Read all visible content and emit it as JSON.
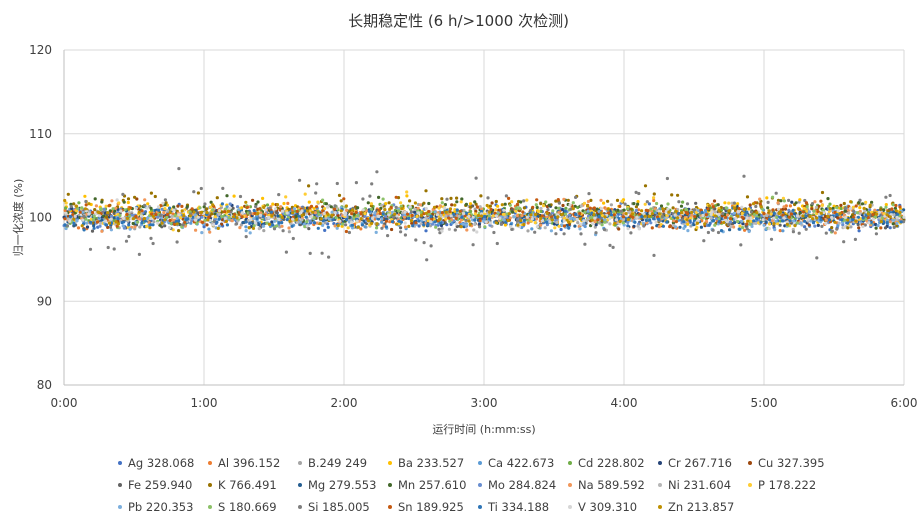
{
  "chart_data": {
    "type": "scatter",
    "title": "长期稳定性 (6 h/>1000 次检测)",
    "xlabel": "运行时间 (h:mm:ss)",
    "ylabel": "归一化浓度 (%)",
    "xlim": [
      0,
      6
    ],
    "ylim": [
      80,
      120
    ],
    "x_ticks": [
      "0:00",
      "1:00",
      "2:00",
      "3:00",
      "4:00",
      "5:00",
      "6:00"
    ],
    "y_ticks": [
      "80",
      "90",
      "100",
      "110",
      "120"
    ],
    "grid": "vertical and horizontal gridlines",
    "legend_position": "bottom",
    "points_per_series": 170,
    "series": [
      {
        "name": "Ag 328.068",
        "color": "#4472C4",
        "mean": 100.0,
        "spread": 0.7
      },
      {
        "name": "Al 396.152",
        "color": "#ED7D31",
        "mean": 100.2,
        "spread": 0.7
      },
      {
        "name": "B.249 249",
        "color": "#A5A5A5",
        "mean": 100.0,
        "spread": 0.8
      },
      {
        "name": "Ba 233.527",
        "color": "#FFC000",
        "mean": 100.6,
        "spread": 0.8
      },
      {
        "name": "Ca 422.673",
        "color": "#5B9BD5",
        "mean": 99.8,
        "spread": 0.6
      },
      {
        "name": "Cd 228.802",
        "color": "#70AD47",
        "mean": 100.5,
        "spread": 0.7
      },
      {
        "name": "Cr 267.716",
        "color": "#264478",
        "mean": 100.1,
        "spread": 0.6
      },
      {
        "name": "Cu 327.395",
        "color": "#9E480E",
        "mean": 100.3,
        "spread": 0.7
      },
      {
        "name": "Fe 259.940",
        "color": "#636363",
        "mean": 100.0,
        "spread": 0.7
      },
      {
        "name": "K 766.491",
        "color": "#997300",
        "mean": 101.0,
        "spread": 1.0
      },
      {
        "name": "Mg 279.553",
        "color": "#255E91",
        "mean": 99.9,
        "spread": 0.6
      },
      {
        "name": "Mn 257.610",
        "color": "#43682B",
        "mean": 100.8,
        "spread": 0.8
      },
      {
        "name": "Mo 284.824",
        "color": "#698ED0",
        "mean": 100.0,
        "spread": 0.6
      },
      {
        "name": "Na 589.592",
        "color": "#F1975A",
        "mean": 100.2,
        "spread": 0.9
      },
      {
        "name": "Ni 231.604",
        "color": "#B7B7B7",
        "mean": 100.0,
        "spread": 0.7
      },
      {
        "name": "P 178.222",
        "color": "#FFCD33",
        "mean": 100.4,
        "spread": 0.9
      },
      {
        "name": "Pb 220.353",
        "color": "#7CAFDD",
        "mean": 99.8,
        "spread": 0.7
      },
      {
        "name": "S 180.669",
        "color": "#8CC168",
        "mean": 100.3,
        "spread": 0.9
      },
      {
        "name": "Si 185.005",
        "color": "#7F7F7F",
        "mean": 100.0,
        "spread": 2.4
      },
      {
        "name": "Sn 189.925",
        "color": "#C55A11",
        "mean": 100.5,
        "spread": 0.8
      },
      {
        "name": "Ti 334.188",
        "color": "#2E75B6",
        "mean": 99.9,
        "spread": 0.6
      },
      {
        "name": "V 309.310",
        "color": "#D6D6D6",
        "mean": 100.0,
        "spread": 0.7
      },
      {
        "name": "Zn 213.857",
        "color": "#BF9000",
        "mean": 100.2,
        "spread": 0.8
      }
    ]
  }
}
